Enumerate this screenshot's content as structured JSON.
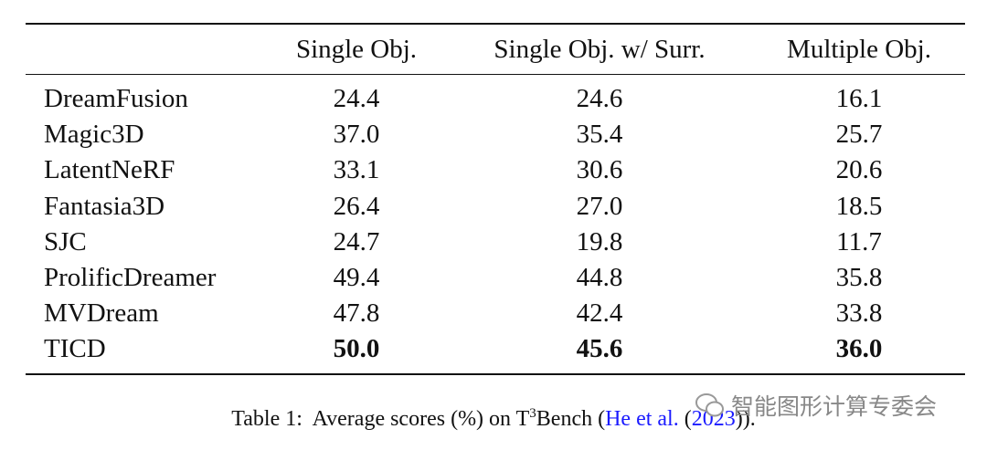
{
  "table": {
    "header": [
      "",
      "Single Obj.",
      "Single Obj. w/ Surr.",
      "Multiple Obj."
    ],
    "rows": [
      [
        "DreamFusion",
        "24.4",
        "24.6",
        "16.1"
      ],
      [
        "Magic3D",
        "37.0",
        "35.4",
        "25.7"
      ],
      [
        "LatentNeRF",
        "33.1",
        "30.6",
        "20.6"
      ],
      [
        "Fantasia3D",
        "26.4",
        "27.0",
        "18.5"
      ],
      [
        "SJC",
        "24.7",
        "19.8",
        "11.7"
      ],
      [
        "ProlificDreamer",
        "49.4",
        "44.8",
        "35.8"
      ],
      [
        "MVDream",
        "47.8",
        "42.4",
        "33.8"
      ],
      [
        "TICD",
        "50.0",
        "45.6",
        "36.0"
      ]
    ]
  },
  "caption": {
    "label": "Table 1:",
    "text": "Average scores (%) on T",
    "sup": "3",
    "text2": "Bench (",
    "cite_author": "He et al.",
    "text3": " (",
    "cite_year": "2023",
    "text4": "))."
  },
  "watermark": "智能图形计算专委会"
}
